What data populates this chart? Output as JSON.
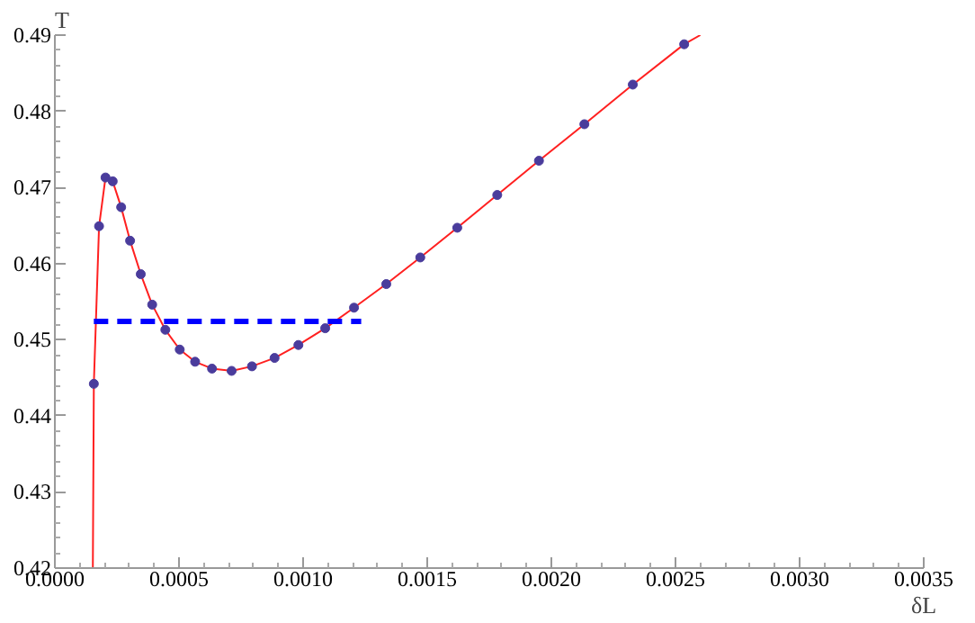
{
  "chart_data": {
    "type": "scatter",
    "xlabel": "δL",
    "ylabel": "T",
    "xlim": [
      0,
      0.0035
    ],
    "ylim": [
      0.42,
      0.49
    ],
    "xticks": [
      {
        "value": 0,
        "label": "0.0000"
      },
      {
        "value": 0.0005,
        "label": "0.0005"
      },
      {
        "value": 0.001,
        "label": "0.0010"
      },
      {
        "value": 0.0015,
        "label": "0.0015"
      },
      {
        "value": 0.002,
        "label": "0.0020"
      },
      {
        "value": 0.0025,
        "label": "0.0025"
      },
      {
        "value": 0.003,
        "label": "0.0030"
      },
      {
        "value": 0.0035,
        "label": "0.0035"
      }
    ],
    "yticks": [
      0.42,
      0.43,
      0.44,
      0.45,
      0.46,
      0.47,
      0.48,
      0.49
    ],
    "grid": false,
    "series": [
      {
        "type": "line",
        "color": "#ff2020",
        "marker": "none",
        "line_style": "solid",
        "x": [
          0.000153,
          0.000157,
          0.000178,
          0.000204,
          0.000233,
          0.000267,
          0.000303,
          0.000346,
          0.000392,
          0.000445,
          0.000503,
          0.000565,
          0.000633,
          0.000712,
          0.000794,
          0.000885,
          0.000981,
          0.001089,
          0.001205,
          0.001335,
          0.001472,
          0.001621,
          0.001782,
          0.00195,
          0.002133,
          0.002328,
          0.002535,
          0.0026
        ],
        "values": [
          0.42,
          0.4442,
          0.4649,
          0.4713,
          0.4708,
          0.4674,
          0.463,
          0.4586,
          0.4546,
          0.4513,
          0.4487,
          0.4471,
          0.4462,
          0.4459,
          0.4465,
          0.4476,
          0.4493,
          0.4515,
          0.4542,
          0.4573,
          0.4608,
          0.4647,
          0.469,
          0.4735,
          0.4783,
          0.4835,
          0.4888,
          0.49
        ]
      },
      {
        "color": "#4a3c9c",
        "marker": "circle",
        "x": [
          0.000157,
          0.000178,
          0.000204,
          0.000233,
          0.000267,
          0.000303,
          0.000346,
          0.000392,
          0.000445,
          0.000503,
          0.000565,
          0.000633,
          0.000712,
          0.000794,
          0.000885,
          0.000981,
          0.001089,
          0.001205,
          0.001335,
          0.001472,
          0.001621,
          0.001782,
          0.00195,
          0.002133,
          0.002328,
          0.002535
        ],
        "values": [
          0.4442,
          0.4649,
          0.4713,
          0.4708,
          0.4674,
          0.463,
          0.4586,
          0.4546,
          0.4513,
          0.4487,
          0.4471,
          0.4462,
          0.4459,
          0.4465,
          0.4476,
          0.4493,
          0.4515,
          0.4542,
          0.4573,
          0.4608,
          0.4647,
          0.469,
          0.4735,
          0.4783,
          0.4835,
          0.4888
        ]
      },
      {
        "type": "line",
        "color": "#0000ff",
        "marker": "none",
        "line_style": "dashed",
        "x": [
          0.000157,
          0.001234
        ],
        "values": [
          0.4524,
          0.4524
        ]
      }
    ]
  }
}
